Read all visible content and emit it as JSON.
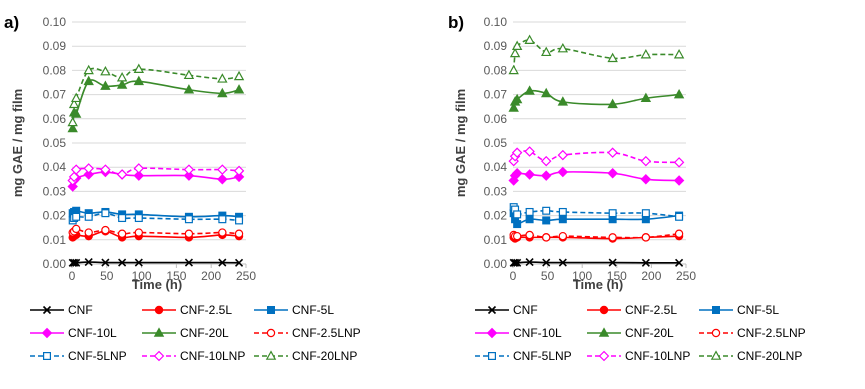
{
  "colors": {
    "CNF": "#000000",
    "CNF-2.5L": "#ff0000",
    "CNF-5L": "#0070c0",
    "CNF-10L": "#ff00ff",
    "CNF-20L": "#3a8a2a",
    "grid": "#d9d9d9",
    "axis": "#bfbfbf"
  },
  "legend_labels": [
    "CNF",
    "CNF-2.5L",
    "CNF-5L",
    "CNF-10L",
    "CNF-20L",
    "CNF-2.5LNP",
    "CNF-5LNP",
    "CNF-10LNP",
    "CNF-20LNP"
  ],
  "chart_data": [
    {
      "type": "line",
      "panel_label": "a)",
      "xlabel": "Time (h)",
      "ylabel": "mg GAE / mg film",
      "xlim": [
        0,
        250
      ],
      "ylim": [
        0,
        0.1
      ],
      "x_ticks": [
        "0",
        "50",
        "100",
        "150",
        "200",
        "250"
      ],
      "y_ticks": [
        "0.00",
        "0.01",
        "0.02",
        "0.03",
        "0.04",
        "0.05",
        "0.06",
        "0.07",
        "0.08",
        "0.09",
        "0.10"
      ],
      "grid": true,
      "legend_position": "bottom",
      "series": [
        {
          "name": "CNF",
          "marker": "x",
          "dashed": false,
          "color": "CNF",
          "x": [
            1,
            3,
            6,
            24,
            48,
            72,
            96,
            168,
            216,
            240
          ],
          "y": [
            0.0005,
            0.0005,
            0.0005,
            0.0008,
            0.0006,
            0.0006,
            0.0006,
            0.0006,
            0.0006,
            0.0005
          ]
        },
        {
          "name": "CNF-2.5L",
          "marker": "circle",
          "dashed": false,
          "color": "CNF-2.5L",
          "x": [
            1,
            3,
            6,
            24,
            48,
            72,
            96,
            168,
            216,
            240
          ],
          "y": [
            0.011,
            0.0115,
            0.012,
            0.0115,
            0.0135,
            0.011,
            0.0115,
            0.011,
            0.012,
            0.0115
          ]
        },
        {
          "name": "CNF-5L",
          "marker": "square",
          "dashed": false,
          "color": "CNF-5L",
          "x": [
            1,
            3,
            6,
            24,
            48,
            72,
            96,
            168,
            216,
            240
          ],
          "y": [
            0.021,
            0.0215,
            0.022,
            0.021,
            0.0215,
            0.0205,
            0.0205,
            0.0195,
            0.02,
            0.0195
          ]
        },
        {
          "name": "CNF-10L",
          "marker": "diamond",
          "dashed": false,
          "color": "CNF-10L",
          "x": [
            1,
            3,
            6,
            24,
            48,
            72,
            96,
            168,
            216,
            240
          ],
          "y": [
            0.032,
            0.0345,
            0.0355,
            0.037,
            0.038,
            0.037,
            0.0365,
            0.0365,
            0.035,
            0.036
          ]
        },
        {
          "name": "CNF-20L",
          "marker": "triangle",
          "dashed": false,
          "color": "CNF-20L",
          "x": [
            1,
            3,
            6,
            24,
            48,
            72,
            96,
            168,
            216,
            240
          ],
          "y": [
            0.056,
            0.0625,
            0.062,
            0.0755,
            0.0735,
            0.074,
            0.0755,
            0.072,
            0.0705,
            0.072
          ]
        },
        {
          "name": "CNF-2.5LNP",
          "marker": "circle-open",
          "dashed": true,
          "color": "CNF-2.5L",
          "x": [
            1,
            3,
            6,
            24,
            48,
            72,
            96,
            168,
            216,
            240
          ],
          "y": [
            0.013,
            0.0135,
            0.0145,
            0.013,
            0.014,
            0.0125,
            0.013,
            0.0125,
            0.013,
            0.0125
          ]
        },
        {
          "name": "CNF-5LNP",
          "marker": "square-open",
          "dashed": true,
          "color": "CNF-5L",
          "x": [
            1,
            3,
            6,
            24,
            48,
            72,
            96,
            168,
            216,
            240
          ],
          "y": [
            0.018,
            0.019,
            0.0195,
            0.0195,
            0.021,
            0.019,
            0.019,
            0.0185,
            0.0185,
            0.018
          ]
        },
        {
          "name": "CNF-10LNP",
          "marker": "diamond-open",
          "dashed": true,
          "color": "CNF-10L",
          "x": [
            1,
            3,
            6,
            24,
            48,
            72,
            96,
            168,
            216,
            240
          ],
          "y": [
            0.0345,
            0.036,
            0.039,
            0.0395,
            0.039,
            0.037,
            0.0395,
            0.039,
            0.039,
            0.0385
          ]
        },
        {
          "name": "CNF-20LNP",
          "marker": "triangle-open",
          "dashed": true,
          "color": "CNF-20L",
          "x": [
            1,
            3,
            6,
            24,
            48,
            72,
            96,
            168,
            216,
            240
          ],
          "y": [
            0.0585,
            0.066,
            0.0685,
            0.08,
            0.0795,
            0.077,
            0.0805,
            0.078,
            0.0765,
            0.0775
          ]
        }
      ]
    },
    {
      "type": "line",
      "panel_label": "b)",
      "xlabel": "Time (h)",
      "ylabel": "mg GAE / mg film",
      "xlim": [
        0,
        250
      ],
      "ylim": [
        0,
        0.1
      ],
      "x_ticks": [
        "0",
        "50",
        "100",
        "150",
        "200",
        "250"
      ],
      "y_ticks": [
        "0.00",
        "0.01",
        "0.02",
        "0.03",
        "0.04",
        "0.05",
        "0.06",
        "0.07",
        "0.08",
        "0.09",
        "0.10"
      ],
      "grid": true,
      "legend_position": "bottom",
      "series": [
        {
          "name": "CNF",
          "marker": "x",
          "dashed": false,
          "color": "CNF",
          "x": [
            1,
            3,
            6,
            24,
            48,
            72,
            144,
            192,
            240
          ],
          "y": [
            0.0005,
            0.0005,
            0.0005,
            0.0008,
            0.0006,
            0.0006,
            0.0006,
            0.0005,
            0.0005
          ]
        },
        {
          "name": "CNF-2.5L",
          "marker": "circle",
          "dashed": false,
          "color": "CNF-2.5L",
          "x": [
            1,
            3,
            6,
            24,
            48,
            72,
            144,
            192,
            240
          ],
          "y": [
            0.011,
            0.0105,
            0.011,
            0.011,
            0.011,
            0.011,
            0.0105,
            0.011,
            0.0115
          ]
        },
        {
          "name": "CNF-5L",
          "marker": "square",
          "dashed": false,
          "color": "CNF-5L",
          "x": [
            1,
            3,
            6,
            24,
            48,
            72,
            144,
            192,
            240
          ],
          "y": [
            0.021,
            0.0185,
            0.0165,
            0.0185,
            0.018,
            0.0185,
            0.0185,
            0.0185,
            0.02
          ]
        },
        {
          "name": "CNF-10L",
          "marker": "diamond",
          "dashed": false,
          "color": "CNF-10L",
          "x": [
            1,
            3,
            6,
            24,
            48,
            72,
            144,
            192,
            240
          ],
          "y": [
            0.0345,
            0.0365,
            0.0375,
            0.037,
            0.0365,
            0.038,
            0.0375,
            0.035,
            0.0345
          ]
        },
        {
          "name": "CNF-20L",
          "marker": "triangle",
          "dashed": false,
          "color": "CNF-20L",
          "x": [
            1,
            3,
            6,
            24,
            48,
            72,
            144,
            192,
            240
          ],
          "y": [
            0.0645,
            0.067,
            0.068,
            0.0715,
            0.0705,
            0.067,
            0.066,
            0.0685,
            0.07
          ]
        },
        {
          "name": "CNF-2.5LNP",
          "marker": "circle-open",
          "dashed": true,
          "color": "CNF-2.5L",
          "x": [
            1,
            3,
            6,
            24,
            48,
            72,
            144,
            192,
            240
          ],
          "y": [
            0.012,
            0.0115,
            0.0115,
            0.012,
            0.011,
            0.0115,
            0.011,
            0.011,
            0.0125
          ]
        },
        {
          "name": "CNF-5LNP",
          "marker": "square-open",
          "dashed": true,
          "color": "CNF-5L",
          "x": [
            1,
            3,
            6,
            24,
            48,
            72,
            144,
            192,
            240
          ],
          "y": [
            0.0235,
            0.0225,
            0.0205,
            0.0215,
            0.022,
            0.0215,
            0.021,
            0.021,
            0.0195
          ]
        },
        {
          "name": "CNF-10LNP",
          "marker": "diamond-open",
          "dashed": true,
          "color": "CNF-10L",
          "x": [
            1,
            3,
            6,
            24,
            48,
            72,
            144,
            192,
            240
          ],
          "y": [
            0.0425,
            0.0445,
            0.046,
            0.0465,
            0.0425,
            0.045,
            0.046,
            0.0425,
            0.042
          ]
        },
        {
          "name": "CNF-20LNP",
          "marker": "triangle-open",
          "dashed": true,
          "color": "CNF-20L",
          "x": [
            1,
            3,
            6,
            24,
            48,
            72,
            144,
            192,
            240
          ],
          "y": [
            0.08,
            0.087,
            0.09,
            0.0925,
            0.0875,
            0.089,
            0.085,
            0.0865,
            0.0865
          ]
        }
      ]
    }
  ]
}
